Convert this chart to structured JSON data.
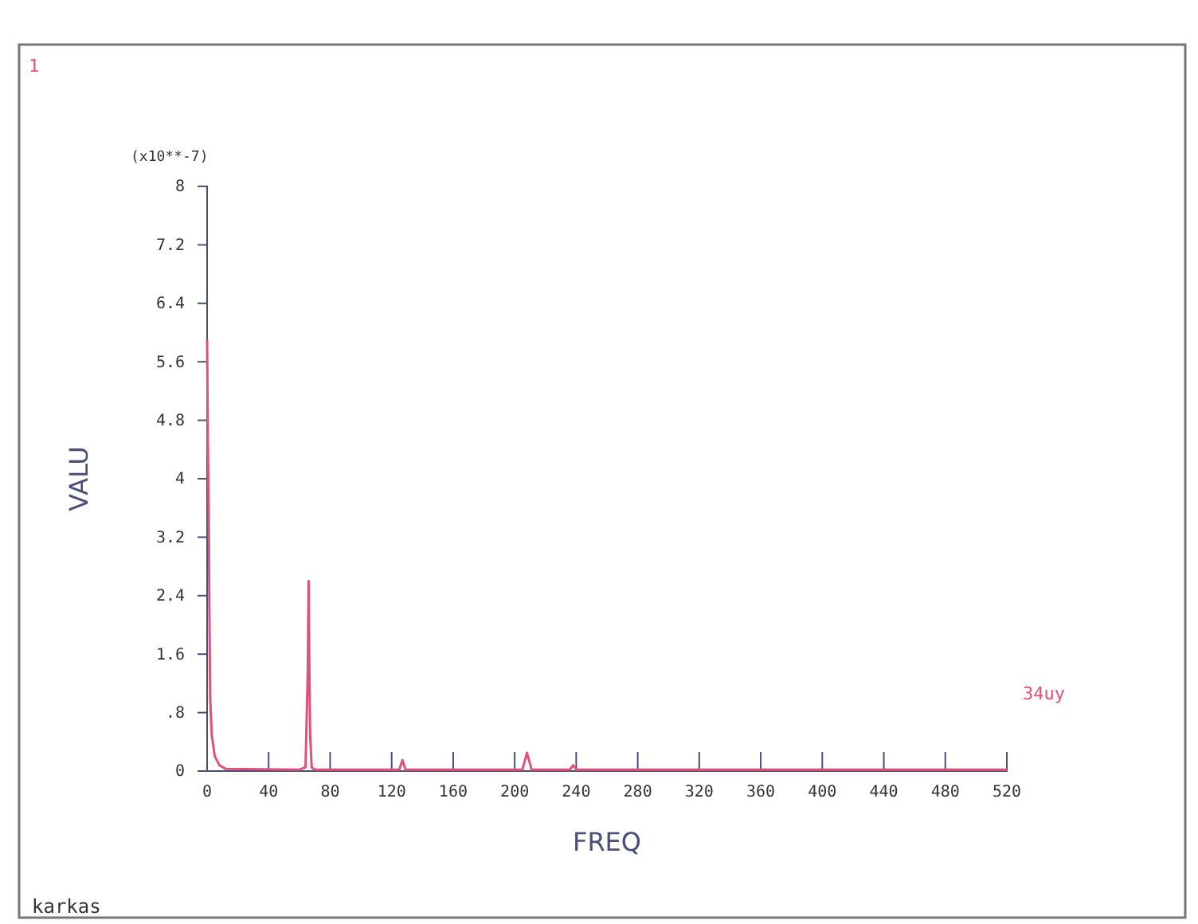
{
  "chart_data": {
    "type": "line",
    "xlabel": "FREQ",
    "ylabel": "VALU",
    "annotations": [
      "1",
      "(x10**-7)",
      "karkas"
    ],
    "xlim": [
      0,
      520
    ],
    "xticks": [
      0,
      40,
      80,
      120,
      160,
      200,
      240,
      280,
      320,
      360,
      400,
      440,
      480,
      520
    ],
    "ylim": [
      0,
      8
    ],
    "yticks": [
      0,
      {
        "value": 0.8,
        "label": ".8"
      },
      1.6,
      2.4,
      3.2,
      4,
      4.8,
      5.6,
      6.4,
      7.2,
      8
    ],
    "grid": false,
    "series": [
      {
        "name": "34uy",
        "color": "#e0507a",
        "x": [
          0,
          0.5,
          1,
          1.5,
          2,
          3,
          5,
          8,
          12,
          60,
          64,
          65.5,
          66,
          66.5,
          67,
          68,
          70,
          125,
          127,
          129,
          205,
          208,
          211,
          236,
          238,
          240,
          520
        ],
        "values": [
          5.9,
          4.5,
          3.7,
          2.2,
          1.0,
          0.5,
          0.2,
          0.08,
          0.03,
          0.02,
          0.05,
          1.4,
          2.6,
          1.4,
          0.5,
          0.05,
          0.02,
          0.02,
          0.15,
          0.02,
          0.02,
          0.25,
          0.02,
          0.02,
          0.08,
          0.02,
          0.02
        ]
      }
    ]
  }
}
